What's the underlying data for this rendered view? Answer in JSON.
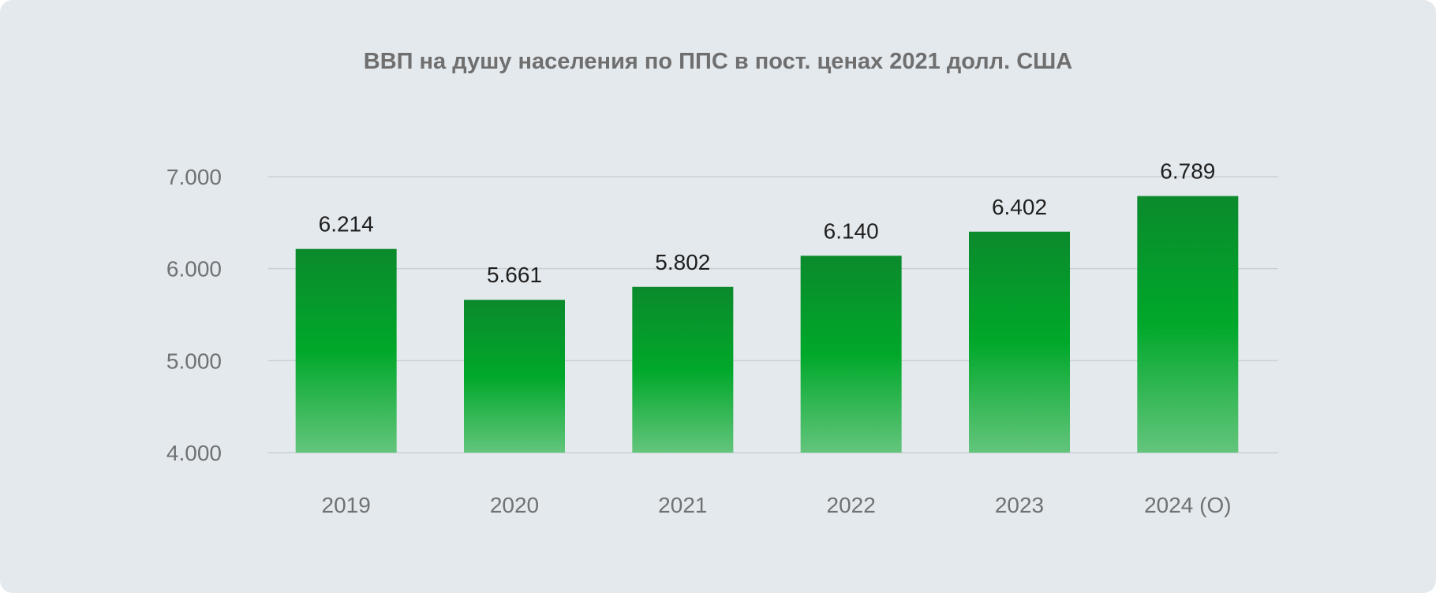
{
  "colors": {
    "background": "#e4e9ed",
    "bar_top": "#0b8a2c",
    "bar_mid": "#00a82a",
    "bar_bottom": "#63c57c",
    "grid": "#c9d0d6",
    "title": "#6f6f6f",
    "tick": "#6f7173",
    "label": "#1f1f1f"
  },
  "chart_data": {
    "type": "bar",
    "title": "ВВП на душу населения по ППС в пост. ценах 2021 долл. США",
    "xlabel": "",
    "ylabel": "",
    "categories": [
      "2019",
      "2020",
      "2021",
      "2022",
      "2023",
      "2024 (О)"
    ],
    "values": [
      6214,
      5661,
      5802,
      6140,
      6402,
      6789
    ],
    "value_labels": [
      "6.214",
      "5.661",
      "5.802",
      "6.140",
      "6.402",
      "6.789"
    ],
    "ylim": [
      4000,
      7000
    ],
    "yticks": [
      4000,
      5000,
      6000,
      7000
    ],
    "ytick_labels": [
      "4.000",
      "5.000",
      "6.000",
      "7.000"
    ],
    "grid": true,
    "legend": "none"
  }
}
